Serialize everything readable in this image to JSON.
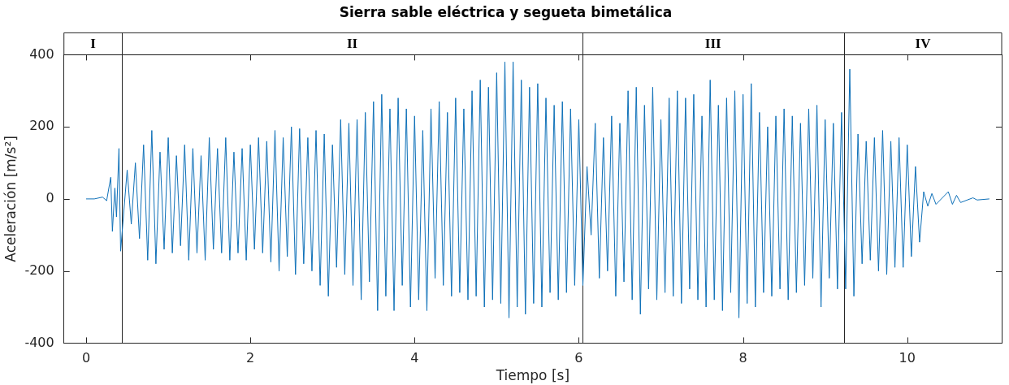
{
  "chart_data": {
    "type": "line",
    "title": "Sierra sable eléctrica y segueta bimetálica",
    "xlabel": "Tiempo [s]",
    "ylabel": "Aceleración [m/s²]",
    "xlim": [
      -0.27,
      11.15
    ],
    "xticks": [
      0,
      2,
      4,
      6,
      8,
      10
    ],
    "ylim": [
      -400,
      400
    ],
    "yticks": [
      -400,
      -200,
      0,
      200,
      400
    ],
    "grid": false,
    "legend": false,
    "marker": "none",
    "line_style": "solid",
    "ref_lines": [
      {
        "axis": "x",
        "value": 0.44,
        "color": "#262626"
      },
      {
        "axis": "x",
        "value": 6.04,
        "color": "#262626"
      },
      {
        "axis": "x",
        "value": 9.23,
        "color": "#262626"
      }
    ],
    "annotations": [
      "I",
      "II",
      "III",
      "IV"
    ],
    "series": [
      {
        "color": "#0e70b8",
        "x": [
          0,
          0.1,
          0.2,
          0.25,
          0.3,
          0.32,
          0.35,
          0.37,
          0.4,
          0.42,
          0.5,
          0.55,
          0.6,
          0.65,
          0.7,
          0.75,
          0.8,
          0.85,
          0.9,
          0.95,
          1.0,
          1.05,
          1.1,
          1.15,
          1.2,
          1.25,
          1.3,
          1.35,
          1.4,
          1.45,
          1.5,
          1.55,
          1.6,
          1.65,
          1.7,
          1.75,
          1.8,
          1.85,
          1.9,
          1.95,
          2.0,
          2.05,
          2.1,
          2.15,
          2.2,
          2.25,
          2.3,
          2.35,
          2.4,
          2.45,
          2.5,
          2.55,
          2.6,
          2.65,
          2.7,
          2.75,
          2.8,
          2.85,
          2.9,
          2.95,
          3.0,
          3.05,
          3.1,
          3.15,
          3.2,
          3.25,
          3.3,
          3.35,
          3.4,
          3.45,
          3.5,
          3.55,
          3.6,
          3.65,
          3.7,
          3.75,
          3.8,
          3.85,
          3.9,
          3.95,
          4.0,
          4.05,
          4.1,
          4.15,
          4.2,
          4.25,
          4.3,
          4.35,
          4.4,
          4.45,
          4.5,
          4.55,
          4.6,
          4.65,
          4.7,
          4.75,
          4.8,
          4.85,
          4.9,
          4.95,
          5.0,
          5.05,
          5.1,
          5.15,
          5.2,
          5.25,
          5.3,
          5.35,
          5.4,
          5.45,
          5.5,
          5.55,
          5.6,
          5.65,
          5.7,
          5.75,
          5.8,
          5.85,
          5.9,
          5.95,
          6.0,
          6.05,
          6.1,
          6.15,
          6.2,
          6.25,
          6.3,
          6.35,
          6.4,
          6.45,
          6.5,
          6.55,
          6.6,
          6.65,
          6.7,
          6.75,
          6.8,
          6.85,
          6.9,
          6.95,
          7.0,
          7.05,
          7.1,
          7.15,
          7.2,
          7.25,
          7.3,
          7.35,
          7.4,
          7.45,
          7.5,
          7.55,
          7.6,
          7.65,
          7.7,
          7.75,
          7.8,
          7.85,
          7.9,
          7.95,
          8.0,
          8.05,
          8.1,
          8.15,
          8.2,
          8.25,
          8.3,
          8.35,
          8.4,
          8.45,
          8.5,
          8.55,
          8.6,
          8.65,
          8.7,
          8.75,
          8.8,
          8.85,
          8.9,
          8.95,
          9.0,
          9.05,
          9.1,
          9.15,
          9.2,
          9.25,
          9.3,
          9.35,
          9.4,
          9.45,
          9.5,
          9.55,
          9.6,
          9.65,
          9.7,
          9.75,
          9.8,
          9.85,
          9.9,
          9.95,
          10.0,
          10.05,
          10.1,
          10.15,
          10.2,
          10.25,
          10.3,
          10.35,
          10.5,
          10.55,
          10.6,
          10.65,
          10.8,
          10.85,
          11.0
        ],
        "values": [
          0,
          0,
          5,
          -5,
          60,
          -90,
          30,
          -50,
          140,
          -145,
          80,
          -70,
          100,
          -110,
          150,
          -170,
          190,
          -180,
          130,
          -140,
          170,
          -150,
          120,
          -130,
          150,
          -170,
          140,
          -150,
          120,
          -170,
          170,
          -140,
          140,
          -150,
          170,
          -170,
          130,
          -150,
          140,
          -170,
          150,
          -140,
          170,
          -150,
          160,
          -175,
          190,
          -200,
          170,
          -160,
          200,
          -210,
          195,
          -180,
          170,
          -200,
          190,
          -240,
          180,
          -270,
          150,
          -190,
          220,
          -210,
          210,
          -240,
          220,
          -280,
          240,
          -230,
          270,
          -310,
          290,
          -270,
          250,
          -310,
          280,
          -240,
          250,
          -300,
          230,
          -280,
          190,
          -310,
          250,
          -220,
          270,
          -240,
          240,
          -270,
          280,
          -260,
          250,
          -280,
          300,
          -270,
          330,
          -300,
          310,
          -280,
          350,
          -290,
          380,
          -330,
          380,
          -300,
          330,
          -320,
          310,
          -290,
          320,
          -300,
          280,
          -260,
          260,
          -280,
          270,
          -260,
          250,
          -240,
          220,
          -240,
          90,
          -100,
          210,
          -220,
          170,
          -200,
          230,
          -270,
          210,
          -230,
          300,
          -280,
          310,
          -320,
          260,
          -250,
          310,
          -280,
          220,
          -260,
          280,
          -270,
          300,
          -290,
          280,
          -250,
          290,
          -280,
          230,
          -300,
          330,
          -280,
          260,
          -310,
          280,
          -260,
          300,
          -330,
          290,
          -290,
          320,
          -300,
          240,
          -260,
          200,
          -270,
          230,
          -250,
          250,
          -280,
          230,
          -260,
          210,
          -240,
          250,
          -220,
          260,
          -300,
          220,
          -220,
          210,
          -250,
          240,
          -250,
          360,
          -270,
          180,
          -180,
          160,
          -170,
          170,
          -200,
          190,
          -210,
          160,
          -190,
          170,
          -190,
          150,
          -160,
          90,
          -120,
          20,
          -20,
          15,
          -15,
          20,
          -15,
          10,
          -10,
          3,
          -3,
          0
        ]
      }
    ]
  }
}
